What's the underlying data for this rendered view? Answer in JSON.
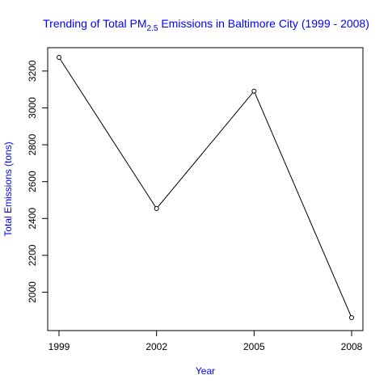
{
  "chart_data": {
    "type": "line",
    "title_main": "Trending of Total PM",
    "title_subscript": "2.5",
    "title_rest": " Emissions in Baltimore City (1999 - 2008)",
    "xlabel": "Year",
    "ylabel": "Total Emissions (tons)",
    "x": [
      1999,
      2002,
      2005,
      2008
    ],
    "x_tick_labels": [
      "1999",
      "2002",
      "2005",
      "2008"
    ],
    "values": [
      3274,
      2454,
      3091,
      1862
    ],
    "y_ticks": [
      2000,
      2200,
      2400,
      2600,
      2800,
      3000,
      3200
    ],
    "ylim": [
      1862,
      3274
    ],
    "line_color": "#000000",
    "label_color": "#0000ff",
    "marker": "open-circle"
  }
}
